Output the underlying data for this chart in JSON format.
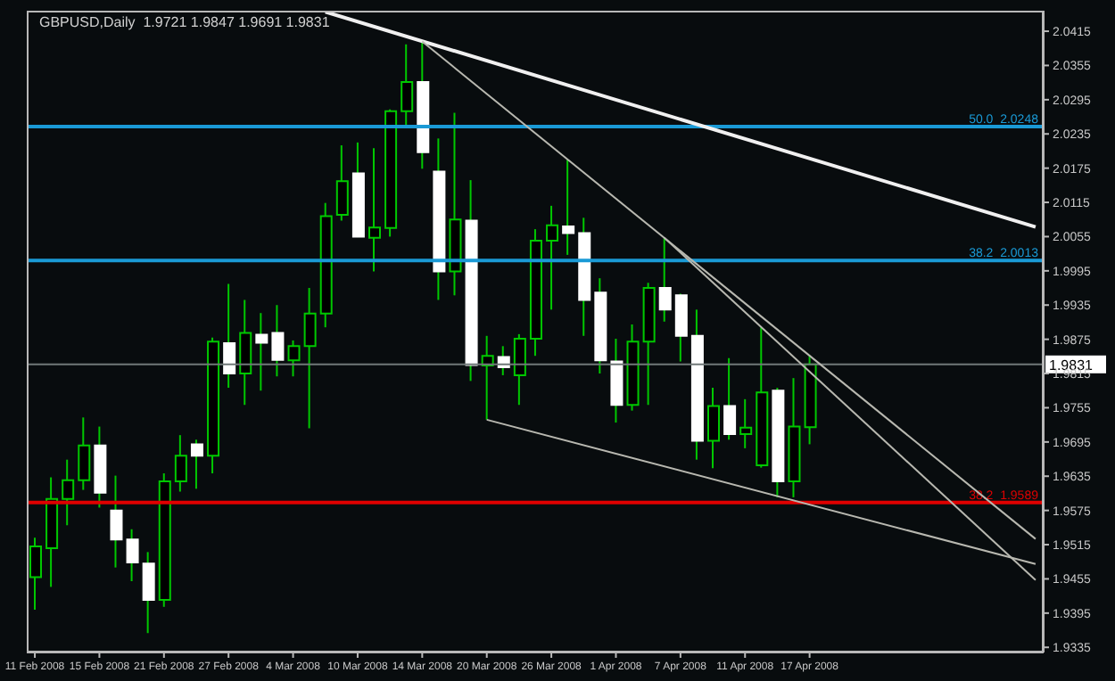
{
  "chart_data": {
    "type": "candlestick",
    "title": "GBPUSD,Daily  1.9721 1.9847 1.9691 1.9831",
    "color": "#00c800",
    "colors": [
      "#00c800",
      "#00c800",
      "#00c800",
      "#00c800",
      "#ffffff",
      "#ffffff",
      "#ffffff",
      "#ffffff",
      "#00c800",
      "#00c800",
      "#ffffff",
      "#00c800",
      "#ffffff",
      "#00c800",
      "#ffffff",
      "#ffffff",
      "#00c800",
      "#00c800",
      "#00c800",
      "#00c800",
      "#ffffff",
      "#00c800",
      "#00c800",
      "#00c800",
      "#ffffff",
      "#ffffff",
      "#00c800",
      "#ffffff",
      "#00c800",
      "#ffffff",
      "#00c800",
      "#00c800",
      "#00c800",
      "#ffffff",
      "#ffffff",
      "#ffffff",
      "#ffffff",
      "#00c800",
      "#00c800",
      "#ffffff",
      "#ffffff",
      "#ffffff",
      "#00c800",
      "#ffffff",
      "#00c800",
      "#00c800",
      "#ffffff",
      "#00c800",
      "#00c800",
      null,
      null,
      null,
      null,
      null,
      null,
      null,
      null,
      null,
      null,
      null,
      null,
      null,
      null
    ],
    "categories": [
      "11 Feb 2008",
      null,
      null,
      null,
      "15 Feb 2008",
      null,
      null,
      null,
      "21 Feb 2008",
      null,
      null,
      null,
      "27 Feb 2008",
      null,
      null,
      null,
      "4 Mar 2008",
      null,
      null,
      null,
      "10 Mar 2008",
      null,
      null,
      null,
      "14 Mar 2008",
      null,
      null,
      null,
      "20 Mar 2008",
      null,
      null,
      null,
      "26 Mar 2008",
      null,
      null,
      null,
      "1 Apr 2008",
      null,
      null,
      null,
      "7 Apr 2008",
      null,
      null,
      null,
      "11 Apr 2008",
      null,
      null,
      null,
      "17 Apr 2008",
      null,
      null,
      null,
      null,
      null,
      null,
      null,
      null,
      null,
      null,
      null,
      null,
      null,
      null
    ],
    "ohlc": [
      [
        1.9458,
        1.9527,
        1.9401,
        1.9512
      ],
      [
        1.9509,
        1.9633,
        1.9441,
        1.9595
      ],
      [
        1.9595,
        1.9664,
        1.9549,
        1.9628
      ],
      [
        1.9628,
        1.9738,
        1.9611,
        1.9689
      ],
      [
        1.9689,
        1.9722,
        1.958,
        1.9606
      ],
      [
        1.9575,
        1.9636,
        1.9475,
        1.9524
      ],
      [
        1.9524,
        1.9542,
        1.9451,
        1.9484
      ],
      [
        1.9482,
        1.9502,
        1.936,
        1.9418
      ],
      [
        1.9418,
        1.964,
        1.9406,
        1.9626
      ],
      [
        1.9626,
        1.9707,
        1.9608,
        1.9671
      ],
      [
        1.9691,
        1.9699,
        1.9613,
        1.9671
      ],
      [
        1.9671,
        1.9878,
        1.964,
        1.9871
      ],
      [
        1.9868,
        1.9972,
        1.979,
        1.9815
      ],
      [
        1.9815,
        1.9944,
        1.976,
        1.9886
      ],
      [
        1.9883,
        1.9921,
        1.9785,
        1.9869
      ],
      [
        1.9886,
        1.9935,
        1.981,
        1.9839
      ],
      [
        1.9838,
        1.9873,
        1.981,
        1.9863
      ],
      [
        1.9863,
        1.9965,
        1.9719,
        1.992
      ],
      [
        1.992,
        2.0114,
        1.9896,
        2.0091
      ],
      [
        2.0093,
        2.0215,
        2.0083,
        2.0152
      ],
      [
        2.0166,
        2.022,
        2.0054,
        2.0055
      ],
      [
        2.0053,
        2.021,
        1.9994,
        2.0071
      ],
      [
        2.007,
        2.0278,
        2.0055,
        2.0275
      ],
      [
        2.0275,
        2.0392,
        2.025,
        2.0326
      ],
      [
        2.0326,
        2.0397,
        2.0174,
        2.0203
      ],
      [
        2.0169,
        2.0227,
        1.9944,
        1.9994
      ],
      [
        1.9994,
        2.0272,
        1.9952,
        2.0085
      ],
      [
        2.0083,
        2.0154,
        1.9802,
        1.983
      ],
      [
        1.9829,
        1.9881,
        1.9734,
        1.9846
      ],
      [
        1.9844,
        1.9863,
        1.9812,
        1.9826
      ],
      [
        1.9812,
        1.9884,
        1.976,
        1.9876
      ],
      [
        1.9876,
        2.0068,
        1.9846,
        2.0048
      ],
      [
        2.0048,
        2.0109,
        1.9927,
        2.0075
      ],
      [
        2.0073,
        2.019,
        2.0023,
        2.0061
      ],
      [
        2.0061,
        2.0088,
        1.9881,
        1.9944
      ],
      [
        1.9957,
        1.9982,
        1.9815,
        1.9838
      ],
      [
        1.9836,
        1.9876,
        1.9729,
        1.976
      ],
      [
        1.976,
        1.9901,
        1.975,
        1.9871
      ],
      [
        1.9871,
        1.9974,
        1.976,
        1.9965
      ],
      [
        1.9965,
        2.0053,
        1.9906,
        1.9927
      ],
      [
        1.9952,
        1.9955,
        1.9836,
        1.9881
      ],
      [
        1.9881,
        1.9927,
        1.9664,
        1.9697
      ],
      [
        1.9697,
        1.979,
        1.9649,
        1.9758
      ],
      [
        1.9758,
        1.9842,
        1.9699,
        1.9709
      ],
      [
        1.9709,
        1.977,
        1.9684,
        1.972
      ],
      [
        1.9654,
        1.9896,
        1.965,
        1.9782
      ],
      [
        1.9785,
        1.979,
        1.9598,
        1.9626
      ],
      [
        1.9626,
        1.9807,
        1.9598,
        1.9722
      ],
      [
        1.9721,
        1.9847,
        1.9691,
        1.9831
      ],
      null,
      null,
      null,
      null,
      null,
      null,
      null,
      null,
      null,
      null,
      null,
      null,
      null,
      null
    ],
    "series": [
      {
        "type": "line",
        "color": "#f0f0f0",
        "values": [
          null,
          null,
          null,
          null,
          null,
          null,
          null,
          null,
          null,
          null,
          null,
          null,
          null,
          null,
          null,
          null,
          null,
          null,
          2.0449,
          null,
          null,
          null,
          null,
          null,
          null,
          null,
          null,
          null,
          null,
          null,
          null,
          null,
          null,
          null,
          null,
          null,
          null,
          null,
          null,
          null,
          null,
          null,
          null,
          null,
          null,
          null,
          null,
          null,
          null,
          null,
          null,
          null,
          null,
          null,
          null,
          null,
          null,
          null,
          null,
          null,
          null,
          null,
          2.0072
        ]
      },
      {
        "type": "line",
        "color": "#b8b8b0",
        "values": [
          null,
          null,
          null,
          null,
          null,
          null,
          null,
          null,
          null,
          null,
          null,
          null,
          null,
          null,
          null,
          null,
          null,
          null,
          null,
          null,
          null,
          null,
          null,
          null,
          2.0397,
          null,
          null,
          null,
          null,
          null,
          null,
          null,
          null,
          null,
          null,
          null,
          null,
          null,
          null,
          null,
          null,
          null,
          null,
          null,
          null,
          null,
          null,
          null,
          null,
          null,
          null,
          null,
          null,
          null,
          null,
          null,
          null,
          null,
          null,
          null,
          null,
          null,
          1.9525
        ]
      },
      {
        "type": "line",
        "color": "#b8b8b0",
        "values": [
          null,
          null,
          null,
          null,
          null,
          null,
          null,
          null,
          null,
          null,
          null,
          null,
          null,
          null,
          null,
          null,
          null,
          null,
          null,
          null,
          null,
          null,
          null,
          null,
          null,
          null,
          null,
          null,
          null,
          null,
          null,
          null,
          null,
          null,
          null,
          null,
          null,
          null,
          null,
          2.0053,
          null,
          null,
          null,
          null,
          null,
          null,
          null,
          null,
          null,
          null,
          null,
          null,
          null,
          null,
          null,
          null,
          null,
          null,
          null,
          null,
          null,
          null,
          1.9453
        ]
      },
      {
        "type": "line",
        "color": "#b8b8b0",
        "values": [
          null,
          null,
          null,
          null,
          null,
          null,
          null,
          null,
          null,
          null,
          null,
          null,
          null,
          null,
          null,
          null,
          null,
          null,
          null,
          null,
          null,
          null,
          null,
          null,
          null,
          null,
          null,
          null,
          1.9734,
          null,
          null,
          null,
          null,
          null,
          null,
          null,
          null,
          null,
          null,
          null,
          null,
          null,
          null,
          null,
          null,
          null,
          null,
          null,
          null,
          null,
          null,
          null,
          null,
          null,
          null,
          null,
          null,
          null,
          null,
          null,
          null,
          null,
          1.9481
        ]
      }
    ],
    "ref_lines": [
      {
        "axis": "y",
        "value": 2.0248,
        "label": "50.0  2.0248",
        "color": "#1a9ad6"
      },
      {
        "axis": "y",
        "value": 2.0013,
        "label": "38.2  2.0013",
        "color": "#1a9ad6"
      },
      {
        "axis": "y",
        "value": 1.9589,
        "label": "38.2  1.9589",
        "color": "#e00000"
      },
      {
        "axis": "y",
        "value": 1.9831,
        "label": "1.9831",
        "color": "#707878"
      }
    ],
    "ylim": [
      1.9326,
      2.0451
    ],
    "yticks": [
      2.0415,
      2.0355,
      2.0295,
      2.0235,
      2.0175,
      2.0115,
      2.0055,
      1.9995,
      1.9935,
      1.9875,
      1.9815,
      1.9755,
      1.9695,
      1.9635,
      1.9575,
      1.9515,
      1.9455,
      1.9395,
      1.9335
    ]
  }
}
